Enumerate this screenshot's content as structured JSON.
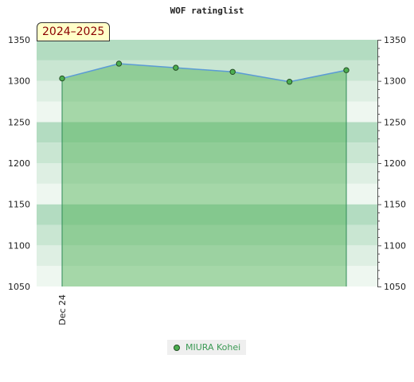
{
  "chart_data": {
    "type": "area",
    "title": "WOF ratinglist",
    "season": "2024–2025",
    "x": [
      "Dec 24",
      "",
      "",
      "",
      "",
      ""
    ],
    "series": [
      {
        "name": "MIURA Kohei",
        "values": [
          1303,
          1321,
          1316,
          1311,
          1299,
          1313
        ]
      }
    ],
    "ylim": [
      1050,
      1350
    ],
    "yticks": [
      1050,
      1100,
      1150,
      1200,
      1250,
      1300,
      1350
    ],
    "y_axis_both_sides": true,
    "grid": true,
    "legend_position": "bottom",
    "colors": {
      "fill": "#4caf50",
      "line": "#5b9bd5",
      "point": "#4caf50",
      "band_dark": "#b3dcc1",
      "band_mid": "#c9e6d2",
      "band_light": "#deefe3",
      "band_lightest": "#eef7f0"
    }
  }
}
